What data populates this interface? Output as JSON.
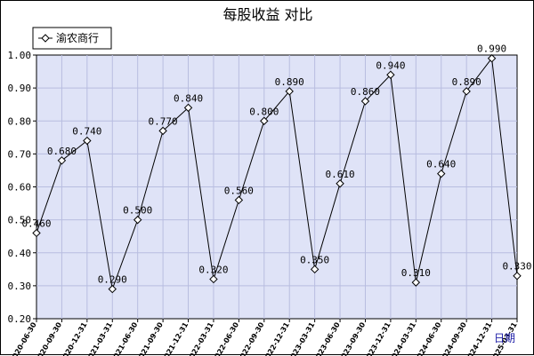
{
  "chart_data": {
    "type": "line",
    "title": "每股收益  对比",
    "xlabel": "日期",
    "ylabel": "",
    "ylim": [
      0.2,
      1.0
    ],
    "yticks": [
      "0.20",
      "0.30",
      "0.40",
      "0.50",
      "0.60",
      "0.70",
      "0.80",
      "0.90",
      "1.00"
    ],
    "grid": true,
    "legend_position": "top-left",
    "colors": {
      "plot_bg": "#dfe3f7",
      "grid": "#b8bde0",
      "line": "#000000"
    },
    "x": [
      "2020-06-30",
      "2020-09-30",
      "2020-12-31",
      "2021-03-31",
      "2021-06-30",
      "2021-09-30",
      "2021-12-31",
      "2022-03-31",
      "2022-06-30",
      "2022-09-30",
      "2022-12-31",
      "2023-03-31",
      "2023-06-30",
      "2023-09-30",
      "2023-12-31",
      "2024-03-31",
      "2024-06-30",
      "2024-09-30",
      "2024-12-31",
      "2025-03-31"
    ],
    "series": [
      {
        "name": "渝农商行",
        "values": [
          0.46,
          0.68,
          0.74,
          0.29,
          0.5,
          0.77,
          0.84,
          0.32,
          0.56,
          0.8,
          0.89,
          0.35,
          0.61,
          0.86,
          0.94,
          0.31,
          0.64,
          0.89,
          0.99,
          0.33
        ],
        "labels": [
          "0.460",
          "0.680",
          "0.740",
          "0.290",
          "0.500",
          "0.770",
          "0.840",
          "0.320",
          "0.560",
          "0.800",
          "0.890",
          "0.350",
          "0.610",
          "0.860",
          "0.940",
          "0.310",
          "0.640",
          "0.890",
          "0.990",
          "0.330"
        ]
      }
    ]
  }
}
